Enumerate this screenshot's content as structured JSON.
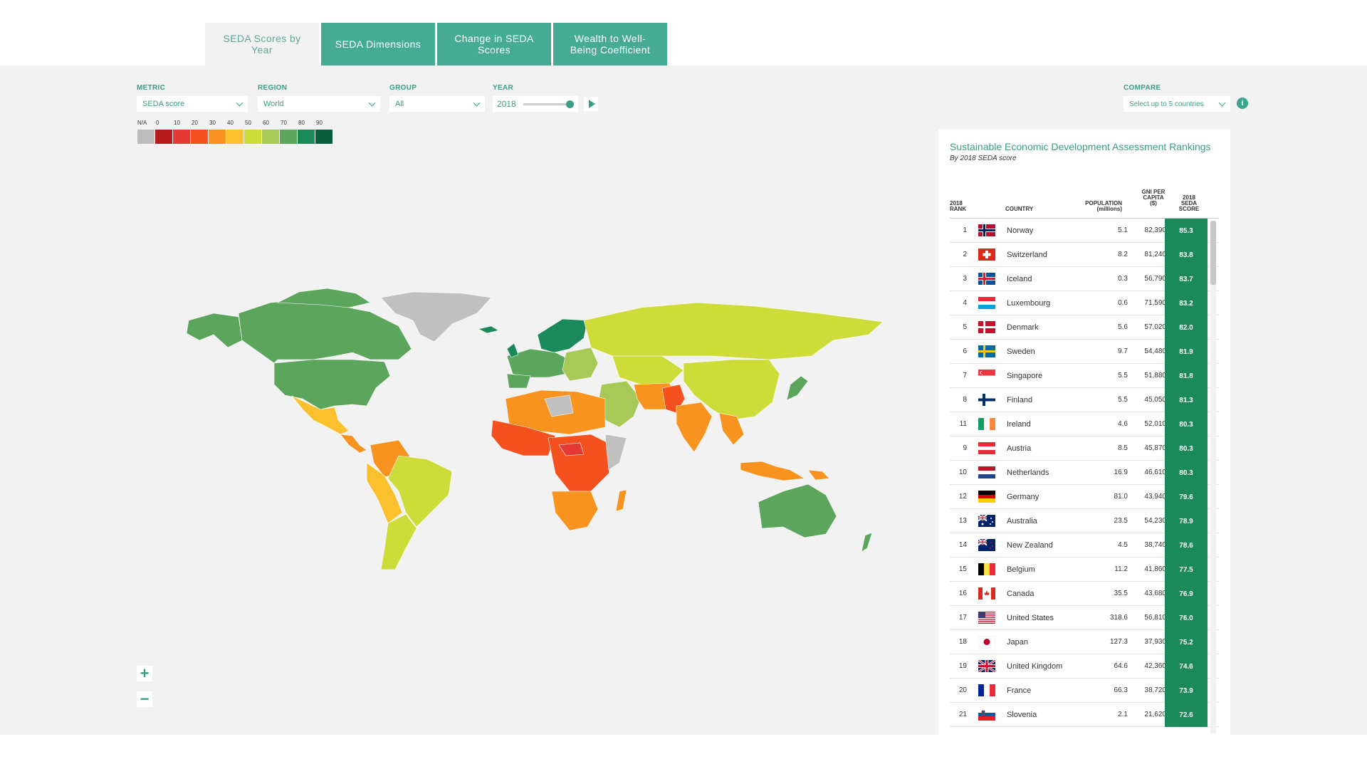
{
  "tabs": [
    {
      "label": "SEDA Scores by Year",
      "active": true
    },
    {
      "label": "SEDA Dimensions",
      "active": false
    },
    {
      "label": "Change in SEDA Scores",
      "active": false
    },
    {
      "label": "Wealth to Well-Being Coefficient",
      "active": false
    }
  ],
  "controls": {
    "metric": {
      "label": "METRIC",
      "value": "SEDA score"
    },
    "region": {
      "label": "REGION",
      "value": "World"
    },
    "group": {
      "label": "GROUP",
      "value": "All"
    },
    "year": {
      "label": "YEAR",
      "value": "2018"
    },
    "compare": {
      "label": "COMPARE",
      "value": "Select up to 5 countries"
    },
    "info_glyph": "i"
  },
  "legend": {
    "labels": [
      "N/A",
      "0",
      "10",
      "20",
      "30",
      "40",
      "50",
      "60",
      "70",
      "80",
      "90"
    ],
    "colors": [
      "#bdbdbd",
      "#b71c1c",
      "#e53935",
      "#f4511e",
      "#f7931e",
      "#fbc02d",
      "#cddc39",
      "#a7c957",
      "#5ba55c",
      "#1b8a5a",
      "#0b5e3b"
    ]
  },
  "zoom": {
    "in": "+",
    "out": "−"
  },
  "rankings": {
    "title": "Sustainable Economic Development Assessment Rankings",
    "subtitle": "By 2018 SEDA score",
    "headers": {
      "rank": "2018 RANK",
      "country": "COUNTRY",
      "population": "POPULATION (millions)",
      "gni": "GNI PER CAPITA ($)",
      "score": "2018 SEDA SCORE"
    },
    "rows": [
      {
        "rank": "1",
        "country": "Norway",
        "population": "5.1",
        "gni": "82,390",
        "score": "85.3",
        "flag": "norway"
      },
      {
        "rank": "2",
        "country": "Switzerland",
        "population": "8.2",
        "gni": "81,240",
        "score": "83.8",
        "flag": "switzerland"
      },
      {
        "rank": "3",
        "country": "Iceland",
        "population": "0.3",
        "gni": "56,790",
        "score": "83.7",
        "flag": "iceland"
      },
      {
        "rank": "4",
        "country": "Luxembourg",
        "population": "0.6",
        "gni": "71,590",
        "score": "83.2",
        "flag": "luxembourg"
      },
      {
        "rank": "5",
        "country": "Denmark",
        "population": "5.6",
        "gni": "57,020",
        "score": "82.0",
        "flag": "denmark"
      },
      {
        "rank": "6",
        "country": "Sweden",
        "population": "9.7",
        "gni": "54,480",
        "score": "81.9",
        "flag": "sweden"
      },
      {
        "rank": "7",
        "country": "Singapore",
        "population": "5.5",
        "gni": "51,880",
        "score": "81.8",
        "flag": "singapore"
      },
      {
        "rank": "8",
        "country": "Finland",
        "population": "5.5",
        "gni": "45,050",
        "score": "81.3",
        "flag": "finland"
      },
      {
        "rank": "11",
        "country": "Ireland",
        "population": "4.6",
        "gni": "52,010",
        "score": "80.3",
        "flag": "ireland"
      },
      {
        "rank": "9",
        "country": "Austria",
        "population": "8.5",
        "gni": "45,870",
        "score": "80.3",
        "flag": "austria"
      },
      {
        "rank": "10",
        "country": "Netherlands",
        "population": "16.9",
        "gni": "46,610",
        "score": "80.3",
        "flag": "netherlands"
      },
      {
        "rank": "12",
        "country": "Germany",
        "population": "81.0",
        "gni": "43,940",
        "score": "79.6",
        "flag": "germany"
      },
      {
        "rank": "13",
        "country": "Australia",
        "population": "23.5",
        "gni": "54,230",
        "score": "78.9",
        "flag": "australia"
      },
      {
        "rank": "14",
        "country": "New Zealand",
        "population": "4.5",
        "gni": "38,740",
        "score": "78.6",
        "flag": "newzealand"
      },
      {
        "rank": "15",
        "country": "Belgium",
        "population": "11.2",
        "gni": "41,860",
        "score": "77.5",
        "flag": "belgium"
      },
      {
        "rank": "16",
        "country": "Canada",
        "population": "35.5",
        "gni": "43,680",
        "score": "76.9",
        "flag": "canada"
      },
      {
        "rank": "17",
        "country": "United States",
        "population": "318.6",
        "gni": "56,810",
        "score": "76.0",
        "flag": "usa"
      },
      {
        "rank": "18",
        "country": "Japan",
        "population": "127.3",
        "gni": "37,930",
        "score": "75.2",
        "flag": "japan"
      },
      {
        "rank": "19",
        "country": "United Kingdom",
        "population": "64.6",
        "gni": "42,360",
        "score": "74.6",
        "flag": "uk"
      },
      {
        "rank": "20",
        "country": "France",
        "population": "66.3",
        "gni": "38,720",
        "score": "73.9",
        "flag": "france"
      },
      {
        "rank": "21",
        "country": "Slovenia",
        "population": "2.1",
        "gni": "21,620",
        "score": "72.6",
        "flag": "slovenia"
      }
    ]
  }
}
